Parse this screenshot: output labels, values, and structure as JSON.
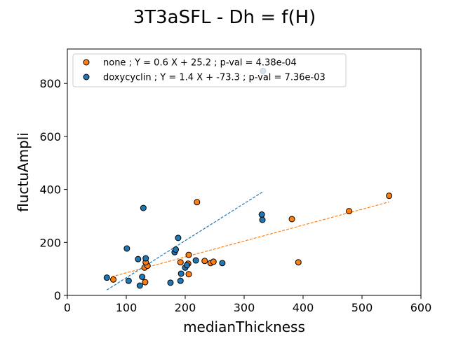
{
  "chart_data": {
    "type": "scatter",
    "title": "3T3aSFL - Dh = f(H)",
    "xlabel": "medianThickness",
    "ylabel": "fluctuAmpli",
    "xlim": [
      0,
      600
    ],
    "ylim": [
      0,
      930
    ],
    "xticks": [
      "0",
      "100",
      "200",
      "300",
      "400",
      "500",
      "600"
    ],
    "yticks": [
      "0",
      "200",
      "400",
      "600",
      "800"
    ],
    "legend_position": "upper-left",
    "grid": false,
    "series": [
      {
        "name": "none ; Y = 0.6 X + 25.2 ; p-val = 4.38e-04",
        "color": "#ff7f0e",
        "points": [
          [
            78,
            60
          ],
          [
            132,
            50
          ],
          [
            131,
            105
          ],
          [
            136,
            112
          ],
          [
            133,
            125
          ],
          [
            192,
            125
          ],
          [
            205,
            120
          ],
          [
            206,
            153
          ],
          [
            206,
            80
          ],
          [
            220,
            352
          ],
          [
            233,
            130
          ],
          [
            243,
            122
          ],
          [
            248,
            127
          ],
          [
            381,
            288
          ],
          [
            392,
            125
          ],
          [
            478,
            318
          ],
          [
            546,
            376
          ]
        ],
        "fit": {
          "slope": 0.6,
          "intercept": 25.2,
          "x_range": [
            75,
            546
          ]
        }
      },
      {
        "name": "doxycyclin ; Y = 1.4 X + -73.3 ; p-val = 7.36e-03",
        "color": "#1f77b4",
        "points": [
          [
            67,
            67
          ],
          [
            101,
            177
          ],
          [
            104,
            55
          ],
          [
            120,
            137
          ],
          [
            123,
            37
          ],
          [
            127,
            70
          ],
          [
            129,
            330
          ],
          [
            133,
            140
          ],
          [
            175,
            48
          ],
          [
            182,
            163
          ],
          [
            184,
            173
          ],
          [
            188,
            217
          ],
          [
            192,
            55
          ],
          [
            193,
            82
          ],
          [
            200,
            105
          ],
          [
            203,
            114
          ],
          [
            218,
            132
          ],
          [
            263,
            122
          ],
          [
            330,
            305
          ],
          [
            331,
            285
          ],
          [
            332,
            847
          ]
        ],
        "fit": {
          "slope": 1.4,
          "intercept": -73.3,
          "x_range": [
            67,
            332
          ]
        }
      }
    ]
  }
}
